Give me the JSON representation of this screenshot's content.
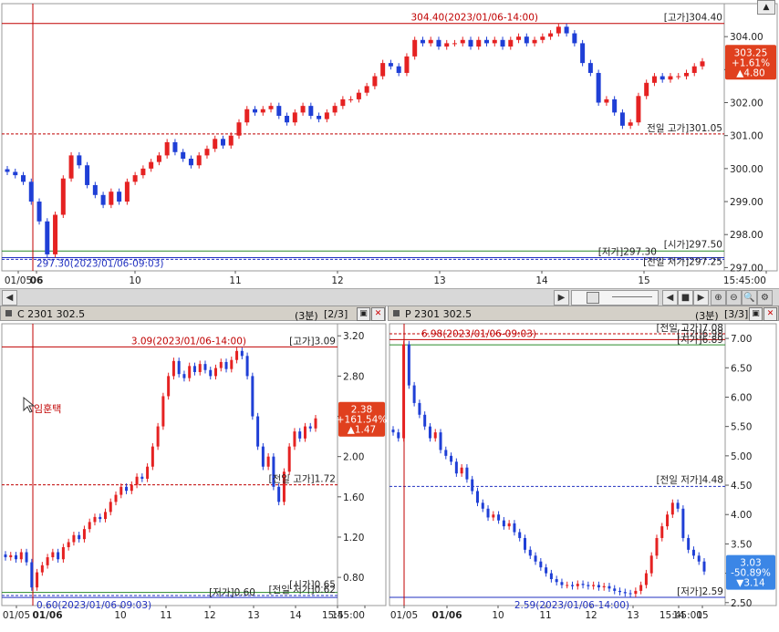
{
  "colors": {
    "up": "#e52222",
    "down": "#1f3fd6",
    "high_line": "#c00000",
    "low_line": "#2a8a2a",
    "prev_line": "#c00000",
    "prev_low_line": "#2030c0",
    "badge_up": "#e0401e",
    "badge_down": "#3b86e6"
  },
  "scrollbar": {
    "left_arrow": "◀",
    "right_arrow": "▶",
    "buttons": [
      "◀",
      "■",
      "▶",
      "⊕",
      "⊖",
      "🔍",
      "⚙"
    ]
  },
  "top_panel": {
    "win_button": "▲",
    "last_price_badge": {
      "price": "303.25",
      "change_pct": "+1.61%",
      "change": "▲4.80"
    },
    "chart_data": {
      "type": "candlestick",
      "yticks": [
        "304.00",
        "303.00",
        "302.00",
        "301.00",
        "300.00",
        "299.00",
        "298.00",
        "297.00"
      ],
      "ytick_values": [
        304,
        303,
        302,
        301,
        300,
        299,
        298,
        297
      ],
      "ylim": [
        296.9,
        305.0
      ],
      "xticks": [
        "01/05",
        "06",
        "10",
        "11",
        "12",
        "13",
        "14",
        "15",
        "15:45:00"
      ],
      "annotations": {
        "high_label": "[고가]304.40",
        "high_value": 304.4,
        "high_point": "304.40(2023/01/06-14:00)",
        "prev_high": "전일 고가]301.05",
        "prev_high_value": 301.05,
        "low_label": "[저가]297.30",
        "low_value": 297.3,
        "low_point": "297.30(2023/01/06-09:03)",
        "open_label": "[시가]297.50",
        "open_value": 297.5,
        "prev_low": "[전일 저가]297.25",
        "prev_low_value": 297.25
      },
      "close_path": [
        299.9,
        299.8,
        299.6,
        299.0,
        298.4,
        297.4,
        298.6,
        299.7,
        300.4,
        300.1,
        299.5,
        299.2,
        298.9,
        299.3,
        299.0,
        299.6,
        299.8,
        300.0,
        300.2,
        300.4,
        300.8,
        300.5,
        300.3,
        300.1,
        300.4,
        300.6,
        300.9,
        300.7,
        301.0,
        301.4,
        301.8,
        301.7,
        301.8,
        301.9,
        301.6,
        301.4,
        301.7,
        301.9,
        301.6,
        301.5,
        301.7,
        301.9,
        302.1,
        302.1,
        302.3,
        302.5,
        302.8,
        303.2,
        303.1,
        302.9,
        303.4,
        303.9,
        303.8,
        303.9,
        303.7,
        303.8,
        303.8,
        303.9,
        303.7,
        303.9,
        303.8,
        303.9,
        303.7,
        303.9,
        304.0,
        303.8,
        303.9,
        304.0,
        304.1,
        304.3,
        304.1,
        303.8,
        303.2,
        302.9,
        302.0,
        302.1,
        301.7,
        301.3,
        301.4,
        302.2,
        302.6,
        302.8,
        302.7,
        302.8,
        302.8,
        302.9,
        303.1,
        303.25
      ]
    }
  },
  "call_panel": {
    "title": "C 2301 302.5",
    "interval": "(3분)",
    "page": "[2/3]",
    "last_price_badge": {
      "price": "2.38",
      "change_pct": "+161.54%",
      "change": "▲1.47"
    },
    "cursor_label": "임훈택",
    "chart_data": {
      "type": "candlestick",
      "yticks": [
        "3.20",
        "2.80",
        "2.40",
        "2.00",
        "1.60",
        "1.20",
        "0.80"
      ],
      "ytick_values": [
        3.2,
        2.8,
        2.4,
        2.0,
        1.6,
        1.2,
        0.8
      ],
      "ylim": [
        0.52,
        3.32
      ],
      "xticks": [
        "01/05",
        "01/06",
        "10",
        "11",
        "12",
        "13",
        "14",
        "15",
        "15:45:00"
      ],
      "annotations": {
        "high_label": "[고가]3.09",
        "high_value": 3.09,
        "high_point": "3.09(2023/01/06-14:00)",
        "prev_high": "[전일 고가]1.72",
        "prev_high_value": 1.72,
        "low_label": "[저가]0.60",
        "low_value": 0.6,
        "open_label": "[시가]0.65",
        "open_value": 0.65,
        "prev_low": "[전일 저가]0.62",
        "prev_low_value": 0.62,
        "low_point": "0.60(2023/01/06-09:03)"
      },
      "close_path": [
        1.0,
        1.02,
        0.98,
        1.05,
        0.95,
        0.7,
        0.85,
        0.92,
        1.0,
        1.05,
        0.98,
        1.1,
        1.15,
        1.22,
        1.18,
        1.28,
        1.35,
        1.4,
        1.38,
        1.45,
        1.55,
        1.62,
        1.7,
        1.66,
        1.72,
        1.8,
        1.78,
        1.9,
        2.1,
        2.3,
        2.6,
        2.8,
        2.95,
        2.82,
        2.78,
        2.9,
        2.84,
        2.92,
        2.86,
        2.8,
        2.88,
        2.94,
        2.87,
        2.96,
        3.05,
        3.0,
        2.8,
        2.4,
        2.1,
        1.9,
        2.0,
        1.7,
        1.55,
        1.85,
        2.1,
        2.25,
        2.18,
        2.3,
        2.28,
        2.38
      ]
    }
  },
  "put_panel": {
    "title": "P 2301 302.5",
    "interval": "(3분)",
    "page": "[3/3]",
    "last_price_badge": {
      "price": "3.03",
      "change_pct": "-50.89%",
      "change": "▼3.14"
    },
    "chart_data": {
      "type": "candlestick",
      "yticks": [
        "7.00",
        "6.50",
        "6.00",
        "5.50",
        "5.00",
        "4.50",
        "4.00",
        "3.50",
        "3.00",
        "2.50"
      ],
      "ytick_values": [
        7.0,
        6.5,
        6.0,
        5.5,
        5.0,
        4.5,
        4.0,
        3.5,
        3.0,
        2.5
      ],
      "ylim": [
        2.45,
        7.25
      ],
      "xticks": [
        "01/05",
        "01/06",
        "10",
        "11",
        "12",
        "13",
        "14",
        "15",
        "15:45:00"
      ],
      "annotations": {
        "high_label": "[고가]6.98",
        "high_value": 6.98,
        "high_point": "6.98(2023/01/06-09:03)",
        "prev_high": "[전일 고가]7.08",
        "prev_high_value": 7.08,
        "open_label": "[시가]6.89",
        "open_value": 6.89,
        "prev_low": "[전일 저가]4.48",
        "prev_low_value": 4.48,
        "low_label": "[저가]2.59",
        "low_value": 2.59,
        "low_point": "2.59(2023/01/06-14:00)"
      },
      "close_path": [
        5.4,
        5.3,
        6.9,
        6.2,
        5.9,
        5.7,
        5.5,
        5.3,
        5.4,
        5.1,
        5.0,
        4.9,
        4.7,
        4.8,
        4.6,
        4.4,
        4.2,
        4.1,
        3.95,
        4.0,
        3.9,
        3.8,
        3.85,
        3.7,
        3.6,
        3.4,
        3.3,
        3.2,
        3.1,
        3.0,
        2.9,
        2.85,
        2.8,
        2.8,
        2.78,
        2.82,
        2.8,
        2.78,
        2.8,
        2.76,
        2.78,
        2.74,
        2.7,
        2.68,
        2.66,
        2.65,
        2.7,
        2.8,
        3.0,
        3.3,
        3.6,
        3.8,
        4.0,
        4.2,
        4.1,
        3.6,
        3.4,
        3.3,
        3.2,
        3.03
      ]
    }
  }
}
